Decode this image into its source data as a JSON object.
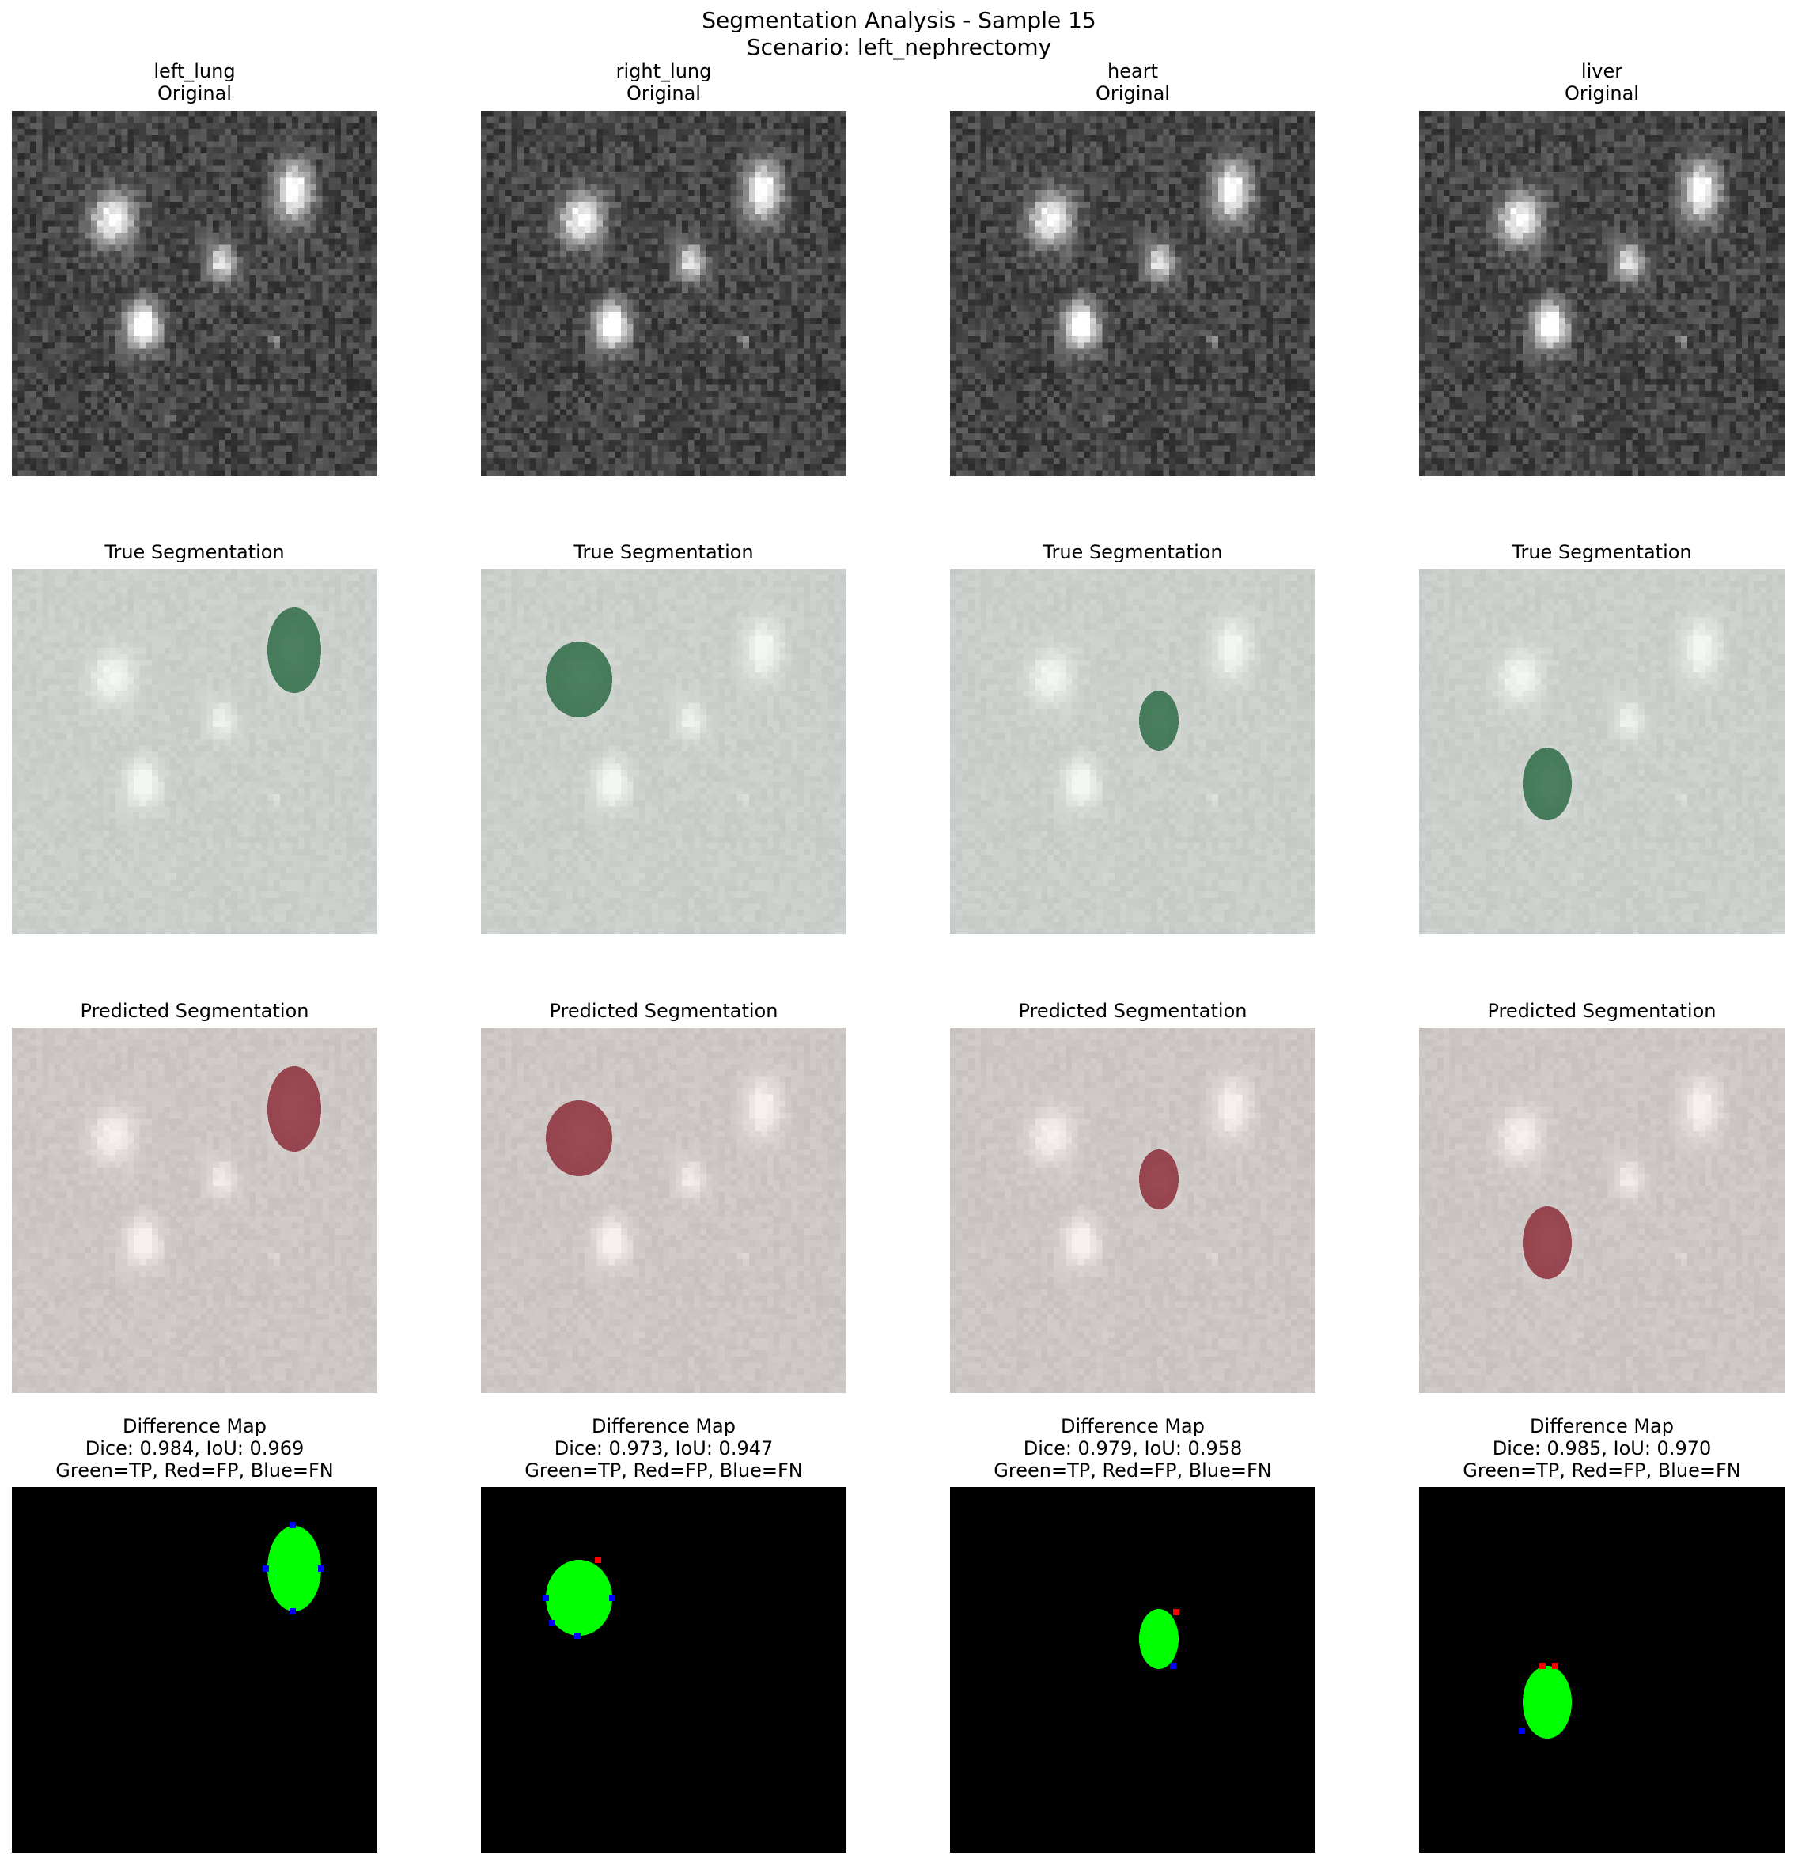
{
  "figure": {
    "title_line1": "Segmentation Analysis - Sample 15",
    "title_line2": "Scenario: left_nephrectomy"
  },
  "columns": [
    {
      "organ": "left_lung",
      "original_label": "Original",
      "true_label": "True Segmentation",
      "pred_label": "Predicted Segmentation",
      "diff_label": "Difference Map",
      "metrics": "Dice: 0.984, IoU: 0.969",
      "legend": "Green=TP, Red=FP, Blue=FN",
      "dice": 0.984,
      "iou": 0.969
    },
    {
      "organ": "right_lung",
      "original_label": "Original",
      "true_label": "True Segmentation",
      "pred_label": "Predicted Segmentation",
      "diff_label": "Difference Map",
      "metrics": "Dice: 0.973, IoU: 0.947",
      "legend": "Green=TP, Red=FP, Blue=FN",
      "dice": 0.973,
      "iou": 0.947
    },
    {
      "organ": "heart",
      "original_label": "Original",
      "true_label": "True Segmentation",
      "pred_label": "Predicted Segmentation",
      "diff_label": "Difference Map",
      "metrics": "Dice: 0.979, IoU: 0.958",
      "legend": "Green=TP, Red=FP, Blue=FN",
      "dice": 0.979,
      "iou": 0.958
    },
    {
      "organ": "liver",
      "original_label": "Original",
      "true_label": "True Segmentation",
      "pred_label": "Predicted Segmentation",
      "diff_label": "Difference Map",
      "metrics": "Dice: 0.985, IoU: 0.970",
      "legend": "Green=TP, Red=FP, Blue=FN",
      "dice": 0.985,
      "iou": 0.97
    }
  ],
  "colors": {
    "true_overlay": "#2e6b45",
    "pred_overlay": "#8c2e38",
    "tp": "#00ff00",
    "fp": "#ff0000",
    "fn": "#0000ff",
    "background_scan": "#2b2b2b"
  }
}
